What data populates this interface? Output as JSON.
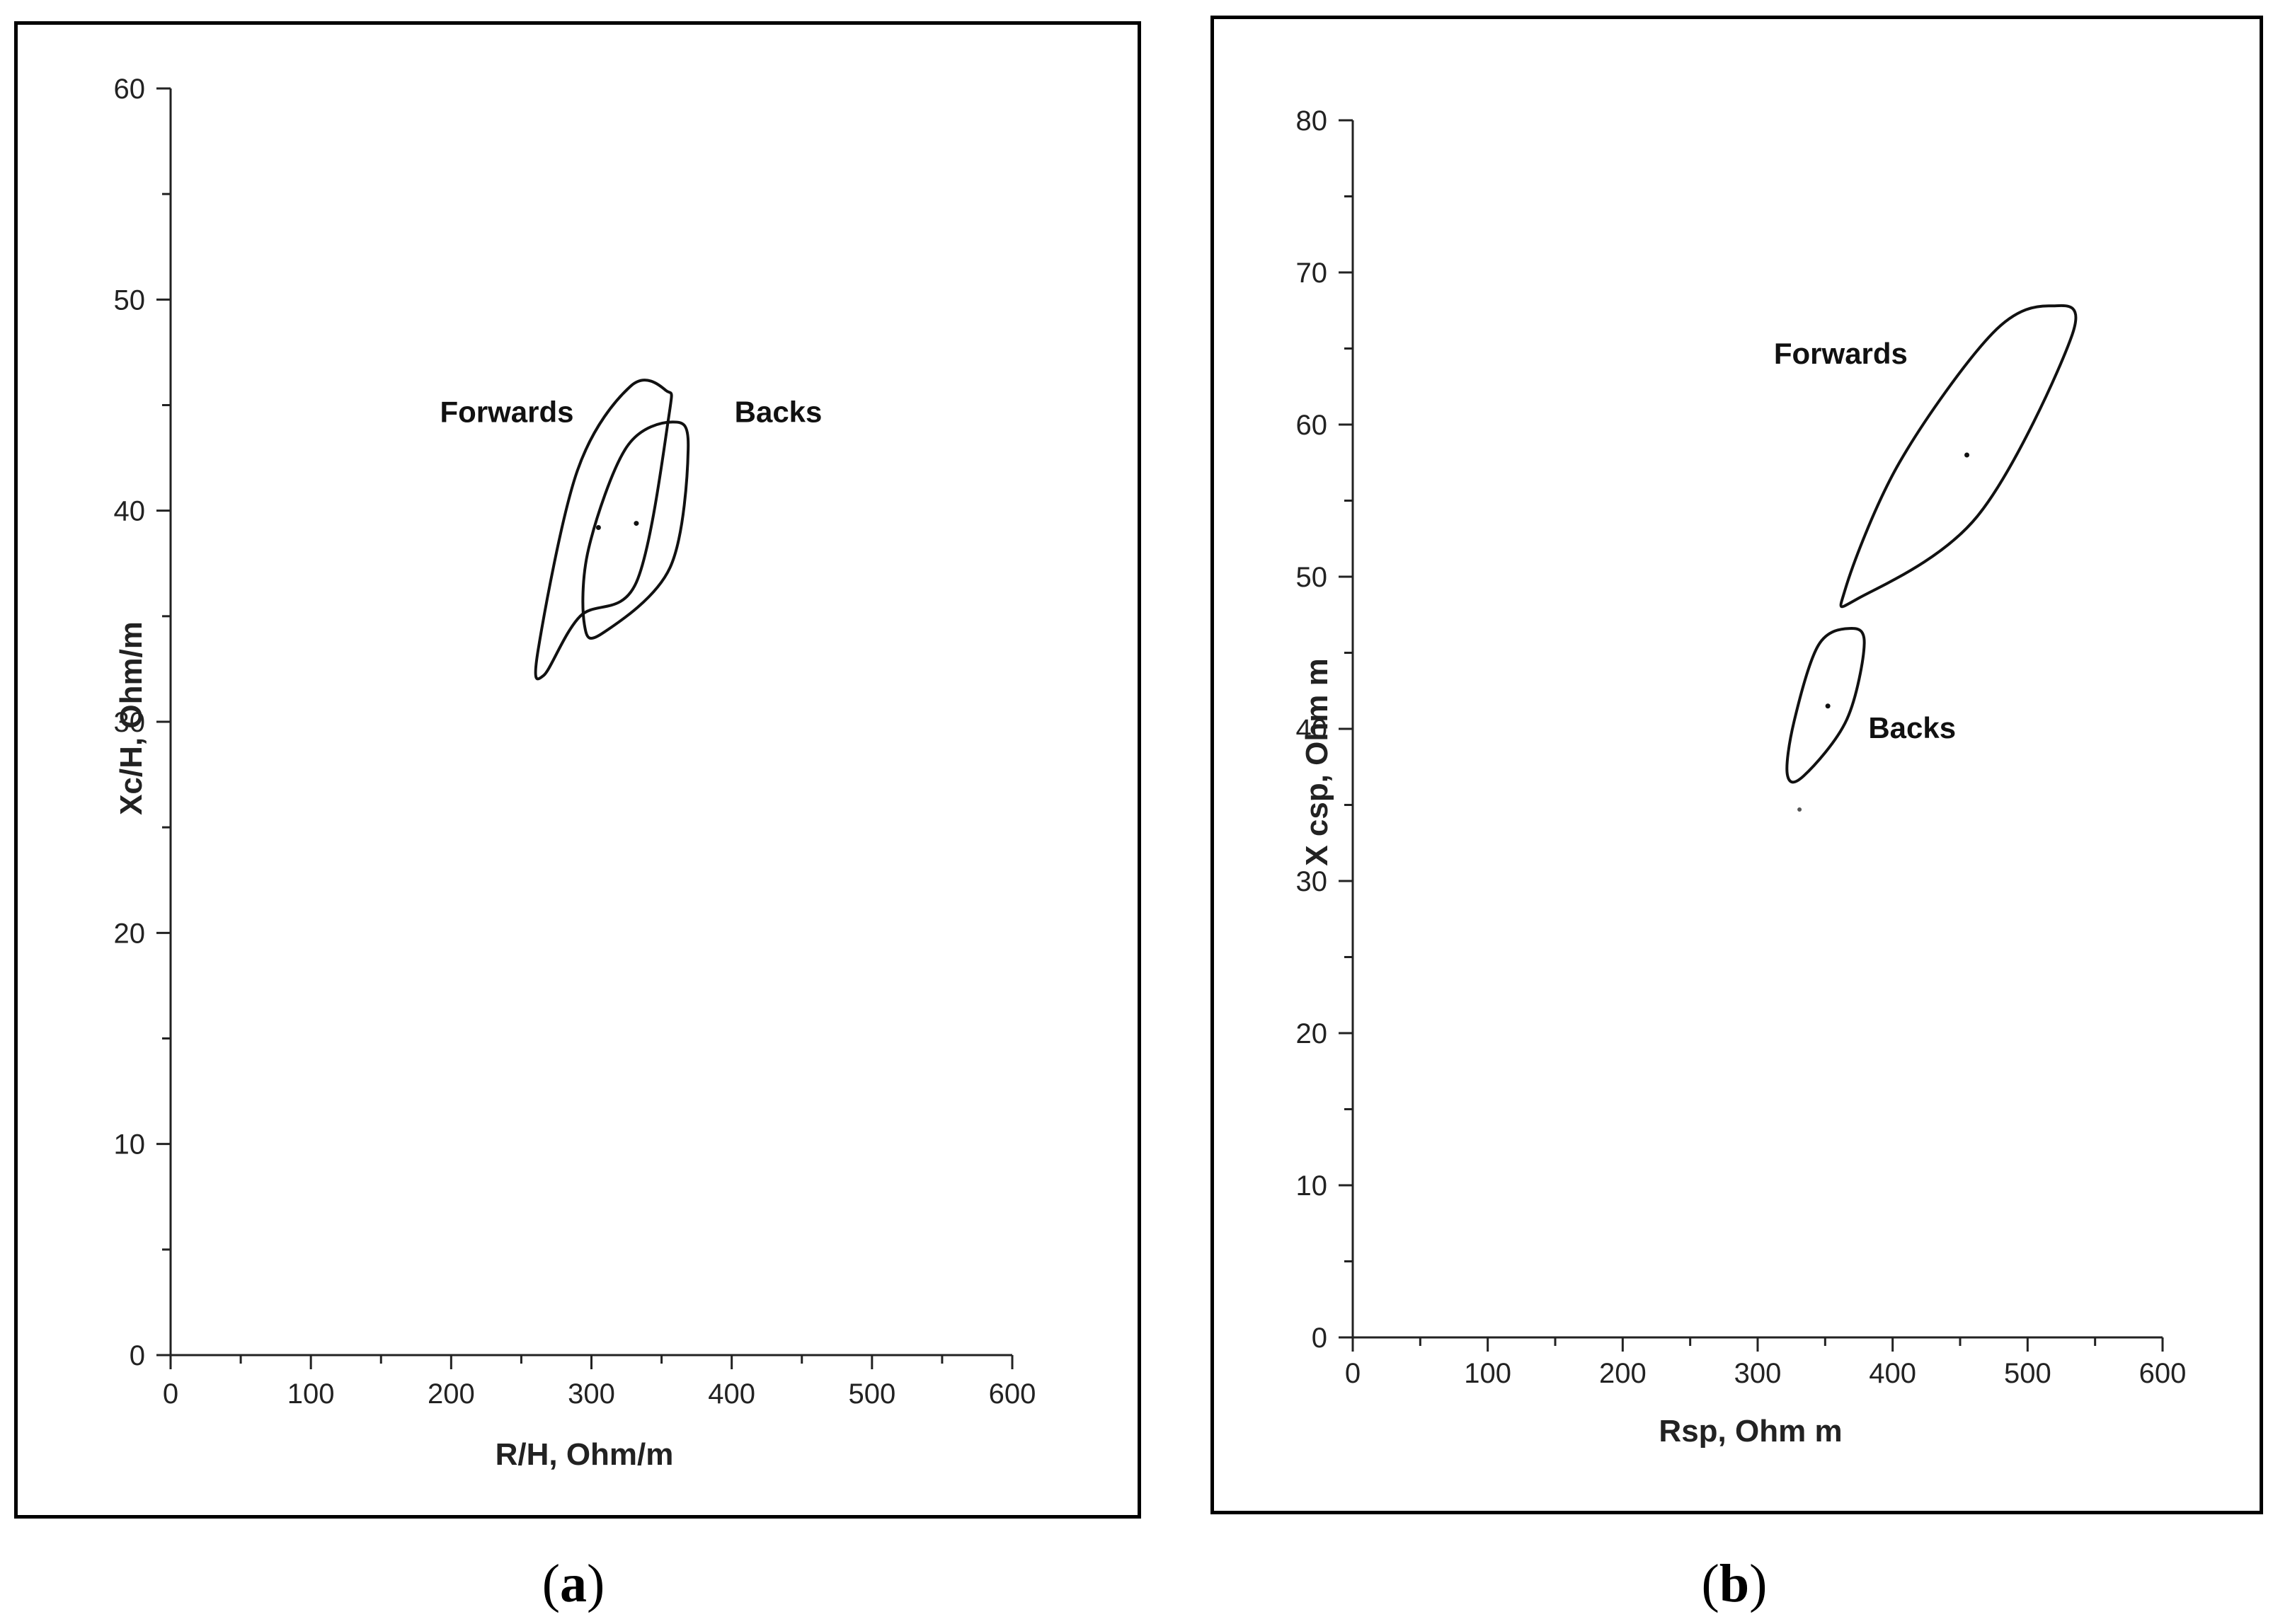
{
  "chart_data": [
    {
      "type": "scatter",
      "panel": "a",
      "caption_letter": "a",
      "xlabel": "R/H, Ohm/m",
      "ylabel": "Xc/H, Ohm/m",
      "xlim": [
        0,
        600
      ],
      "ylim": [
        0,
        60
      ],
      "xticks": [
        0,
        100,
        200,
        300,
        400,
        500,
        600
      ],
      "yticks": [
        0,
        10,
        20,
        30,
        40,
        50,
        60
      ],
      "x_minor": 50,
      "y_minor": 5,
      "series": [
        {
          "name": "Forwards",
          "center": [
            305,
            39.2
          ],
          "ellipse": [
            [
              353,
              45.7
            ],
            [
              355,
              44.4
            ],
            [
              332,
              36.6
            ],
            [
              292,
              35.0
            ],
            [
              266,
              32.2
            ],
            [
              262,
              33.4
            ],
            [
              290,
              41.9
            ],
            [
              328,
              45.9
            ],
            [
              353,
              45.7
            ]
          ],
          "label_anchor": [
            192,
            44.2
          ]
        },
        {
          "name": "Backs",
          "center": [
            332,
            39.4
          ],
          "ellipse": [
            [
              358,
              44.2
            ],
            [
              369,
              43.0
            ],
            [
              356,
              37.3
            ],
            [
              308,
              34.2
            ],
            [
              295,
              34.6
            ],
            [
              298,
              38.2
            ],
            [
              325,
              43.0
            ],
            [
              358,
              44.2
            ]
          ],
          "label_anchor": [
            402,
            44.2
          ]
        }
      ]
    },
    {
      "type": "scatter",
      "panel": "b",
      "caption_letter": "b",
      "xlabel": "Rsp, Ohm m",
      "ylabel": "X csp, Ohm m",
      "xlim": [
        0,
        600
      ],
      "ylim": [
        0,
        80
      ],
      "xticks": [
        0,
        100,
        200,
        300,
        400,
        500,
        600
      ],
      "yticks": [
        0,
        10,
        20,
        30,
        40,
        50,
        60,
        70,
        80
      ],
      "x_minor": 50,
      "y_minor": 5,
      "series": [
        {
          "name": "Forwards",
          "center": [
            455,
            58.0
          ],
          "ellipse": [
            [
              517,
              67.8
            ],
            [
              533,
              65.9
            ],
            [
              463,
              54.0
            ],
            [
              375,
              48.6
            ],
            [
              365,
              49.2
            ],
            [
              405,
              57.5
            ],
            [
              474,
              66.0
            ],
            [
              517,
              67.8
            ]
          ],
          "label_anchor": [
            312,
            64.0
          ]
        },
        {
          "name": "Backs",
          "center": [
            352,
            41.5
          ],
          "ellipse": [
            [
              368,
              46.6
            ],
            [
              379,
              45.6
            ],
            [
              366,
              40.6
            ],
            [
              334,
              36.9
            ],
            [
              322,
              37.0
            ],
            [
              327,
              40.5
            ],
            [
              345,
              45.5
            ],
            [
              368,
              46.6
            ]
          ],
          "label_anchor": [
            382,
            39.4
          ]
        }
      ],
      "extra_points": [
        [
          331,
          34.7
        ]
      ]
    }
  ]
}
